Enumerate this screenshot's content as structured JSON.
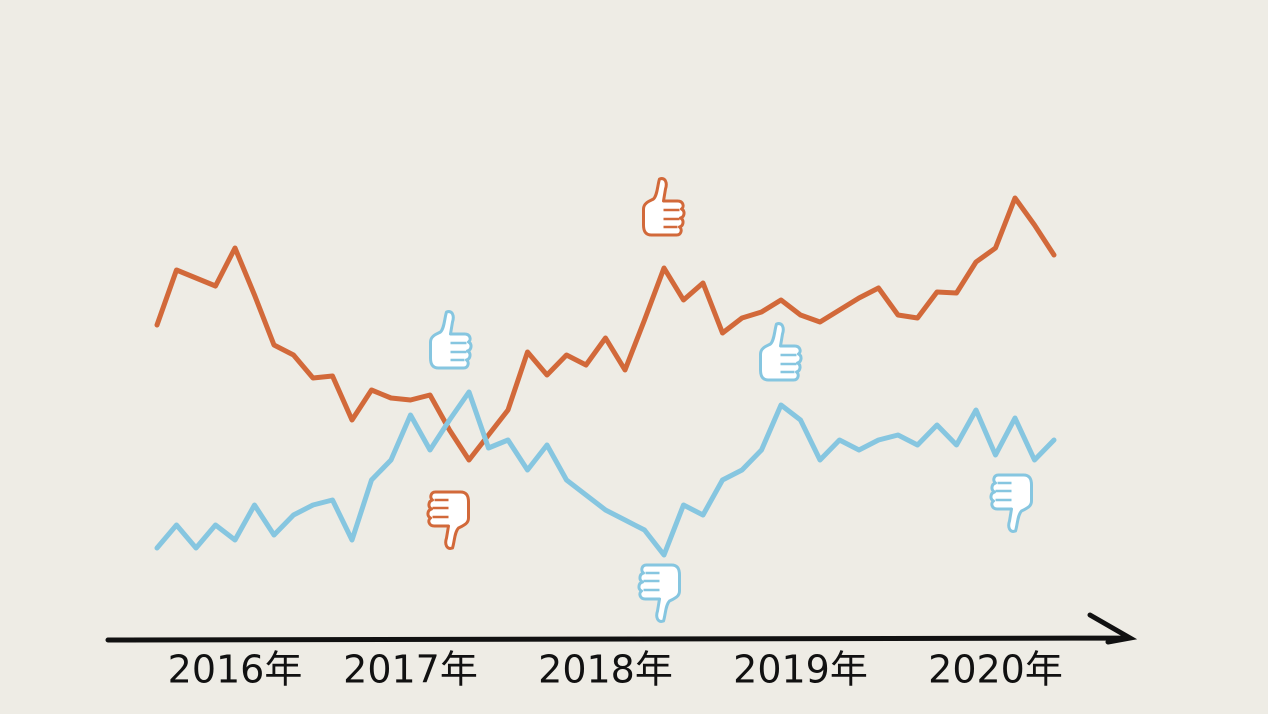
{
  "chart_data": {
    "type": "line",
    "categories": [
      null,
      null,
      null,
      null,
      "2016年",
      null,
      null,
      null,
      null,
      null,
      null,
      null,
      null,
      "2017年",
      null,
      null,
      null,
      null,
      null,
      null,
      null,
      null,
      null,
      "2018年",
      null,
      null,
      null,
      null,
      null,
      null,
      null,
      null,
      null,
      "2019年",
      null,
      null,
      null,
      null,
      null,
      null,
      null,
      null,
      null,
      "2020年",
      null,
      null,
      null
    ],
    "series": [
      {
        "color": "#d2693a",
        "values": [
          315,
          370,
          362,
          354,
          392,
          345,
          295,
          285,
          262,
          264,
          220,
          250,
          242,
          240,
          245,
          210,
          180,
          205,
          230,
          288,
          265,
          285,
          275,
          302,
          270,
          320,
          372,
          340,
          357,
          307,
          322,
          328,
          340,
          325,
          318,
          330,
          342,
          352,
          325,
          322,
          348,
          347,
          378,
          392,
          442,
          415,
          385
        ]
      },
      {
        "color": "#86c6e0",
        "values": [
          92,
          115,
          92,
          115,
          100,
          135,
          105,
          125,
          135,
          140,
          100,
          160,
          180,
          225,
          190,
          220,
          248,
          192,
          200,
          170,
          195,
          160,
          145,
          130,
          120,
          110,
          85,
          135,
          125,
          160,
          170,
          190,
          235,
          220,
          180,
          200,
          190,
          200,
          205,
          195,
          215,
          195,
          230,
          185,
          222,
          180,
          200
        ]
      }
    ],
    "ylim": [
      0,
      640
    ]
  }
}
